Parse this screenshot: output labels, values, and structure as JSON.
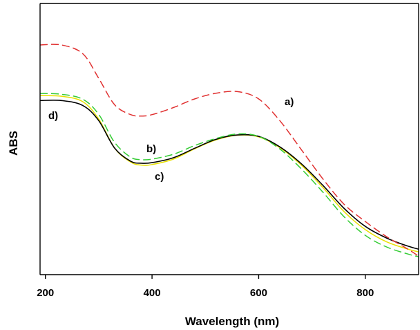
{
  "chart_data": {
    "type": "line",
    "title": "",
    "xlabel": "Wavelength (nm)",
    "ylabel": "ABS",
    "xlim": [
      190,
      900
    ],
    "ylim": [
      0,
      1
    ],
    "x_ticks": [
      200,
      400,
      600,
      800
    ],
    "y_ticks": [],
    "grid": false,
    "legend": "inline series labels",
    "x": [
      190,
      230,
      270,
      300,
      330,
      360,
      380,
      400,
      440,
      480,
      520,
      560,
      600,
      640,
      680,
      720,
      760,
      800,
      840,
      880,
      900
    ],
    "series": [
      {
        "name": "a)",
        "color": "#e03030",
        "dash": "dashed",
        "values": [
          0.847,
          0.847,
          0.815,
          0.724,
          0.626,
          0.59,
          0.585,
          0.59,
          0.616,
          0.648,
          0.669,
          0.675,
          0.648,
          0.567,
          0.461,
          0.354,
          0.26,
          0.196,
          0.14,
          0.094,
          0.068
        ]
      },
      {
        "name": "b)",
        "color": "#33cc33",
        "dash": "dashed",
        "values": [
          0.668,
          0.665,
          0.647,
          0.591,
          0.487,
          0.433,
          0.424,
          0.426,
          0.444,
          0.476,
          0.502,
          0.519,
          0.51,
          0.463,
          0.39,
          0.305,
          0.214,
          0.145,
          0.102,
          0.076,
          0.066
        ]
      },
      {
        "name": "c)",
        "color": "#e8e000",
        "dash": "solid",
        "values": [
          0.66,
          0.658,
          0.638,
          0.574,
          0.466,
          0.415,
          0.404,
          0.406,
          0.426,
          0.464,
          0.497,
          0.514,
          0.508,
          0.468,
          0.404,
          0.322,
          0.233,
          0.166,
          0.121,
          0.094,
          0.084
        ]
      },
      {
        "name": "d)",
        "color": "#000000",
        "dash": "solid",
        "values": [
          0.642,
          0.642,
          0.624,
          0.568,
          0.466,
          0.418,
          0.411,
          0.413,
          0.431,
          0.466,
          0.499,
          0.515,
          0.51,
          0.471,
          0.409,
          0.33,
          0.245,
          0.178,
          0.135,
          0.105,
          0.094
        ]
      }
    ],
    "annotations": [
      "a)",
      "b)",
      "c)",
      "d)"
    ]
  }
}
